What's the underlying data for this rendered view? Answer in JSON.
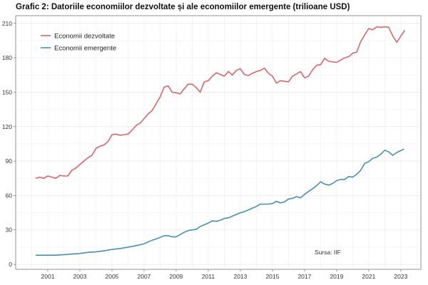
{
  "chart_data": {
    "type": "line",
    "title": "Grafic 2: Datoriile economiilor dezvoltate și ale economiilor emergente (trilioane USD)",
    "xlabel": "",
    "ylabel": "",
    "xlim": [
      1999.0,
      2024.25
    ],
    "ylim": [
      -4.3,
      216.7
    ],
    "x_ticks": [
      "2001",
      "2003",
      "2005",
      "2007",
      "2009",
      "2011",
      "2013",
      "2015",
      "2017",
      "2019",
      "2021",
      "2023"
    ],
    "y_ticks": [
      0,
      30,
      60,
      90,
      120,
      150,
      180,
      210
    ],
    "grid": true,
    "legend_position": "top-left",
    "annotation": "Sursa: IIF",
    "series": [
      {
        "name": "Economii dezvoltate",
        "color": "#d7676b",
        "x": [
          2000.25,
          2000.5,
          2000.75,
          2001,
          2001.25,
          2001.5,
          2001.75,
          2002,
          2002.25,
          2002.5,
          2002.75,
          2003,
          2003.25,
          2003.5,
          2003.75,
          2004,
          2004.25,
          2004.5,
          2004.75,
          2005,
          2005.25,
          2005.5,
          2005.75,
          2006,
          2006.25,
          2006.5,
          2006.75,
          2007,
          2007.25,
          2007.5,
          2007.75,
          2008,
          2008.25,
          2008.5,
          2008.75,
          2009,
          2009.25,
          2009.5,
          2009.75,
          2010,
          2010.25,
          2010.5,
          2010.75,
          2011,
          2011.25,
          2011.5,
          2011.75,
          2012,
          2012.25,
          2012.5,
          2012.75,
          2013,
          2013.25,
          2013.5,
          2013.75,
          2014,
          2014.25,
          2014.5,
          2014.75,
          2015,
          2015.25,
          2015.5,
          2015.75,
          2016,
          2016.25,
          2016.5,
          2016.75,
          2017,
          2017.25,
          2017.5,
          2017.75,
          2018,
          2018.25,
          2018.5,
          2018.75,
          2019,
          2019.25,
          2019.5,
          2019.75,
          2020,
          2020.25,
          2020.5,
          2020.75,
          2021,
          2021.25,
          2021.5,
          2021.75,
          2022,
          2022.25,
          2022.5,
          2022.75,
          2023,
          2023.25
        ],
        "values": [
          75,
          76,
          75,
          77,
          76,
          75,
          77.5,
          77,
          77,
          82,
          84,
          87,
          90,
          93,
          95,
          101,
          103,
          104,
          107,
          113,
          113.5,
          112.5,
          113,
          113.5,
          117,
          121,
          123,
          127,
          131,
          134,
          140,
          146,
          154.5,
          155.5,
          150,
          149.5,
          148.5,
          153,
          157,
          157,
          154,
          150,
          159,
          160,
          164,
          167,
          165.5,
          164,
          168,
          165,
          169,
          170.5,
          165.5,
          164.5,
          166.5,
          168,
          169,
          171,
          166.5,
          164,
          158,
          160,
          159.5,
          159,
          164,
          166,
          168,
          162.5,
          164,
          169.5,
          173.5,
          174,
          179.5,
          177,
          176.5,
          176,
          178,
          180,
          181,
          184,
          185,
          194,
          200,
          205.5,
          204.5,
          207,
          206.5,
          207,
          206.5,
          199,
          193.5,
          199,
          204
        ]
      },
      {
        "name": "Economii emergente",
        "color": "#4a8fb0",
        "x": [
          2000.25,
          2000.5,
          2000.75,
          2001,
          2001.5,
          2002,
          2002.5,
          2003,
          2003.5,
          2004,
          2004.5,
          2005,
          2005.5,
          2006,
          2006.5,
          2007,
          2007.5,
          2008,
          2008.25,
          2008.5,
          2008.75,
          2009,
          2009.25,
          2009.5,
          2009.75,
          2010,
          2010.25,
          2010.5,
          2010.75,
          2011,
          2011.25,
          2011.5,
          2011.75,
          2012,
          2012.25,
          2012.5,
          2012.75,
          2013,
          2013.25,
          2013.5,
          2013.75,
          2014,
          2014.25,
          2014.5,
          2014.75,
          2015,
          2015.25,
          2015.5,
          2015.75,
          2016,
          2016.25,
          2016.5,
          2016.75,
          2017,
          2017.25,
          2017.5,
          2017.75,
          2018,
          2018.25,
          2018.5,
          2018.75,
          2019,
          2019.25,
          2019.5,
          2019.75,
          2020,
          2020.25,
          2020.5,
          2020.75,
          2021,
          2021.25,
          2021.5,
          2021.75,
          2022,
          2022.25,
          2022.5,
          2022.75,
          2023.2
        ],
        "values": [
          8,
          8,
          8,
          8,
          8,
          8.5,
          9,
          9.5,
          10.5,
          11,
          11.8,
          13,
          13.8,
          15,
          16.3,
          18,
          21,
          23.5,
          25,
          25,
          24,
          24,
          26,
          28,
          29.5,
          30,
          30.5,
          33,
          34.5,
          36,
          38,
          37.5,
          38.5,
          40,
          40.5,
          42,
          43.5,
          45,
          46,
          47.5,
          49,
          50.5,
          52.5,
          52.5,
          52.5,
          53,
          55,
          53.5,
          54.5,
          57,
          57.5,
          59,
          58,
          61,
          63.5,
          66,
          68.5,
          72,
          70,
          69,
          70.5,
          73,
          74,
          74,
          76.5,
          76,
          78.5,
          82,
          88,
          89.5,
          92.5,
          93.5,
          96,
          99.5,
          98,
          95,
          97.5,
          100.5
        ]
      }
    ]
  }
}
